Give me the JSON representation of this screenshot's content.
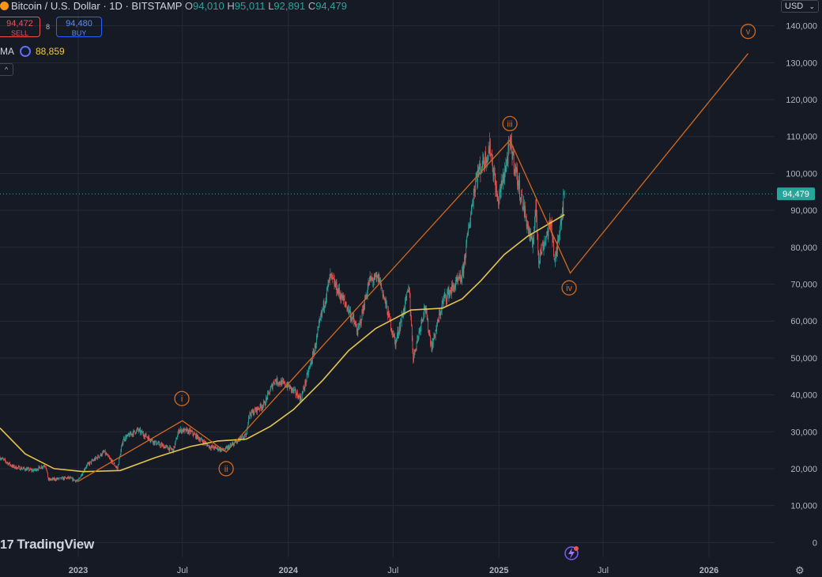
{
  "header": {
    "symbol": "Bitcoin / U.S. Dollar · 1D · BITSTAMP",
    "open_label": "O",
    "open": "94,010",
    "high_label": "H",
    "high": "95,011",
    "low_label": "L",
    "low": "92,891",
    "close_label": "C",
    "close": "94,479"
  },
  "trade": {
    "sell_price": "94,472",
    "sell_label": "SELL",
    "spread": "8",
    "buy_price": "94,480",
    "buy_label": "BUY"
  },
  "indicator": {
    "name": "MA",
    "value": "88,859"
  },
  "currency": "USD",
  "branding": {
    "logo_text": "TradingView",
    "logo_mark": "17"
  },
  "colors": {
    "background": "#161a25",
    "grid": "#262a36",
    "up": "#26a69a",
    "down": "#ef5350",
    "ma": "#e3c54a",
    "wave": "#d2691e",
    "price_label_bg": "#26a69a"
  },
  "chart_data": {
    "type": "candlestick",
    "symbol": "BTCUSD",
    "interval": "1D",
    "y_axis": {
      "ticks": [
        0,
        10000,
        20000,
        30000,
        40000,
        50000,
        60000,
        70000,
        80000,
        90000,
        100000,
        110000,
        120000,
        130000,
        140000
      ],
      "tick_labels": [
        "0",
        "10,000",
        "20,000",
        "30,000",
        "40,000",
        "50,000",
        "60,000",
        "70,000",
        "80,000",
        "90,000",
        "100,000",
        "110,000",
        "120,000",
        "130,000",
        "140,000"
      ],
      "range": [
        -4000,
        147000
      ]
    },
    "x_axis": {
      "range": [
        "2022-08-18",
        "2026-04-25"
      ],
      "ticks": [
        "2023-01-01",
        "2023-07-01",
        "2024-01-01",
        "2024-07-01",
        "2025-01-01",
        "2025-07-01",
        "2026-01-01"
      ],
      "tick_labels": [
        "2023",
        "Jul",
        "2024",
        "Jul",
        "2025",
        "Jul",
        "2026"
      ]
    },
    "last_price": 94479,
    "last_price_label": "94,479",
    "price_path": [
      [
        "2022-08-18",
        23000
      ],
      [
        "2022-09-10",
        20500
      ],
      [
        "2022-10-15",
        19500
      ],
      [
        "2022-11-05",
        21000
      ],
      [
        "2022-11-10",
        17000
      ],
      [
        "2022-12-15",
        17500
      ],
      [
        "2022-12-31",
        16600
      ],
      [
        "2023-01-15",
        20800
      ],
      [
        "2023-02-15",
        24500
      ],
      [
        "2023-03-10",
        20000
      ],
      [
        "2023-03-20",
        28000
      ],
      [
        "2023-04-14",
        30500
      ],
      [
        "2023-05-15",
        27000
      ],
      [
        "2023-06-15",
        25000
      ],
      [
        "2023-06-25",
        30500
      ],
      [
        "2023-07-15",
        30000
      ],
      [
        "2023-08-17",
        26000
      ],
      [
        "2023-09-11",
        25000
      ],
      [
        "2023-10-20",
        29000
      ],
      [
        "2023-10-24",
        34500
      ],
      [
        "2023-11-20",
        37500
      ],
      [
        "2023-12-08",
        44000
      ],
      [
        "2023-12-31",
        42500
      ],
      [
        "2024-01-23",
        39000
      ],
      [
        "2024-02-15",
        52000
      ],
      [
        "2024-02-28",
        62000
      ],
      [
        "2024-03-14",
        72000
      ],
      [
        "2024-04-15",
        63000
      ],
      [
        "2024-05-01",
        57000
      ],
      [
        "2024-05-21",
        71000
      ],
      [
        "2024-06-07",
        71500
      ],
      [
        "2024-07-05",
        54000
      ],
      [
        "2024-07-29",
        69000
      ],
      [
        "2024-08-05",
        50000
      ],
      [
        "2024-08-25",
        64000
      ],
      [
        "2024-09-06",
        53000
      ],
      [
        "2024-09-27",
        66000
      ],
      [
        "2024-10-29",
        72000
      ],
      [
        "2024-11-12",
        88000
      ],
      [
        "2024-11-22",
        99000
      ],
      [
        "2024-12-17",
        107000
      ],
      [
        "2024-12-30",
        92000
      ],
      [
        "2025-01-21",
        108000
      ],
      [
        "2025-02-04",
        97000
      ],
      [
        "2025-02-28",
        80000
      ],
      [
        "2025-03-06",
        91000
      ],
      [
        "2025-03-11",
        77000
      ],
      [
        "2025-04-02",
        87000
      ],
      [
        "2025-04-08",
        75000
      ],
      [
        "2025-04-16",
        85000
      ],
      [
        "2025-04-25",
        94479
      ]
    ],
    "moving_average": {
      "name": "MA",
      "value": 88859,
      "points": [
        [
          "2022-08-18",
          31000
        ],
        [
          "2022-10-01",
          24000
        ],
        [
          "2022-11-20",
          20000
        ],
        [
          "2023-01-10",
          19200
        ],
        [
          "2023-03-15",
          19500
        ],
        [
          "2023-05-15",
          23000
        ],
        [
          "2023-07-15",
          26000
        ],
        [
          "2023-09-01",
          27500
        ],
        [
          "2023-10-20",
          28000
        ],
        [
          "2023-12-01",
          31500
        ],
        [
          "2024-01-10",
          36000
        ],
        [
          "2024-03-01",
          44000
        ],
        [
          "2024-04-15",
          52000
        ],
        [
          "2024-06-01",
          58000
        ],
        [
          "2024-08-01",
          63000
        ],
        [
          "2024-09-25",
          63500
        ],
        [
          "2024-10-29",
          66000
        ],
        [
          "2024-12-01",
          71000
        ],
        [
          "2025-01-10",
          78000
        ],
        [
          "2025-02-20",
          83000
        ],
        [
          "2025-03-25",
          86000
        ],
        [
          "2025-04-25",
          88859
        ]
      ]
    },
    "wave_count": {
      "points": [
        [
          "2022-12-31",
          16500
        ],
        [
          "2023-07-01",
          33000
        ],
        [
          "2023-09-15",
          24500
        ],
        [
          "2025-01-20",
          109000
        ],
        [
          "2025-05-05",
          73000
        ],
        [
          "2026-03-10",
          132500
        ]
      ],
      "labels": [
        {
          "text": "i",
          "date": "2023-06-30",
          "price": 39000
        },
        {
          "text": "ii",
          "date": "2023-09-15",
          "price": 20000
        },
        {
          "text": "iii",
          "date": "2025-01-20",
          "price": 113500
        },
        {
          "text": "iv",
          "date": "2025-05-03",
          "price": 69000
        },
        {
          "text": "v",
          "date": "2026-03-10",
          "price": 138500
        }
      ]
    }
  }
}
